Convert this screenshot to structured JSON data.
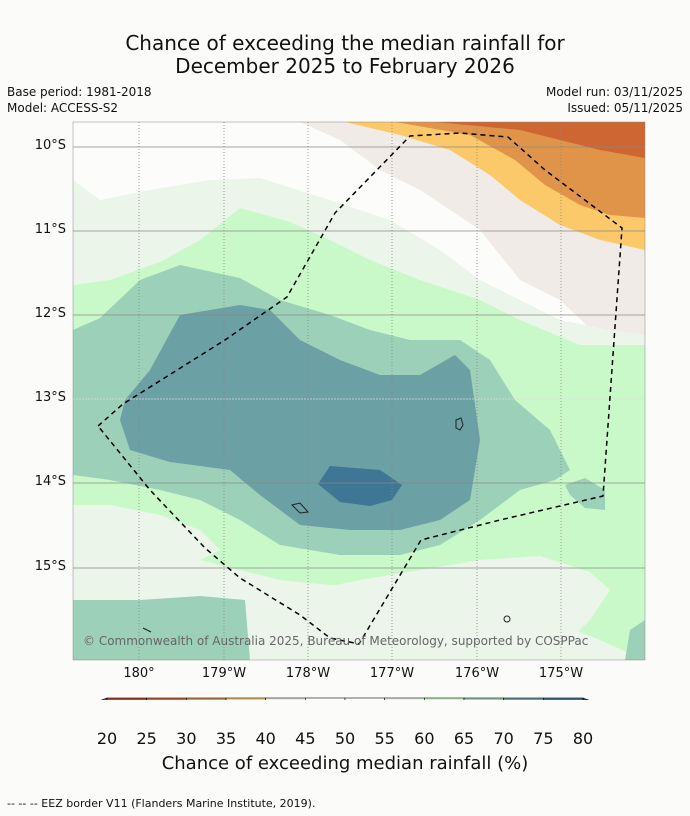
{
  "title_line1": "Chance of exceeding the median rainfall for",
  "title_line2": "December 2025 to February 2026",
  "base_period": "Base period: 1981-2018",
  "model": "Model: ACCESS-S2",
  "model_run": "Model run: 03/11/2025",
  "issued": "Issued: 05/11/2025",
  "copyright": "© Commonwealth of Australia 2025, Bureau of Meteorology, supported by COSPPac",
  "lat_labels": [
    "10°S",
    "11°S",
    "12°S",
    "13°S",
    "14°S",
    "15°S"
  ],
  "lon_labels": [
    "180°",
    "179°W",
    "178°W",
    "177°W",
    "176°W",
    "175°W"
  ],
  "colorbar": {
    "ticks": [
      "20",
      "25",
      "30",
      "35",
      "40",
      "45",
      "50",
      "55",
      "60",
      "65",
      "70",
      "75",
      "80"
    ],
    "label": "Chance of exceeding median rainfall (%)",
    "colors": [
      "#8c3a26",
      "#b34a2a",
      "#cd6633",
      "#e0944a",
      "#fbc96a",
      "#f0ebe6",
      "#fdfefd",
      "#fcfefc",
      "#ebf5ea",
      "#caf9c9",
      "#9dd0b9",
      "#6ba0a4",
      "#3f7696",
      "#1e4e82"
    ]
  },
  "footnote": "--  --  -- EEZ border V11 (Flanders Marine Institute, 2019)."
}
